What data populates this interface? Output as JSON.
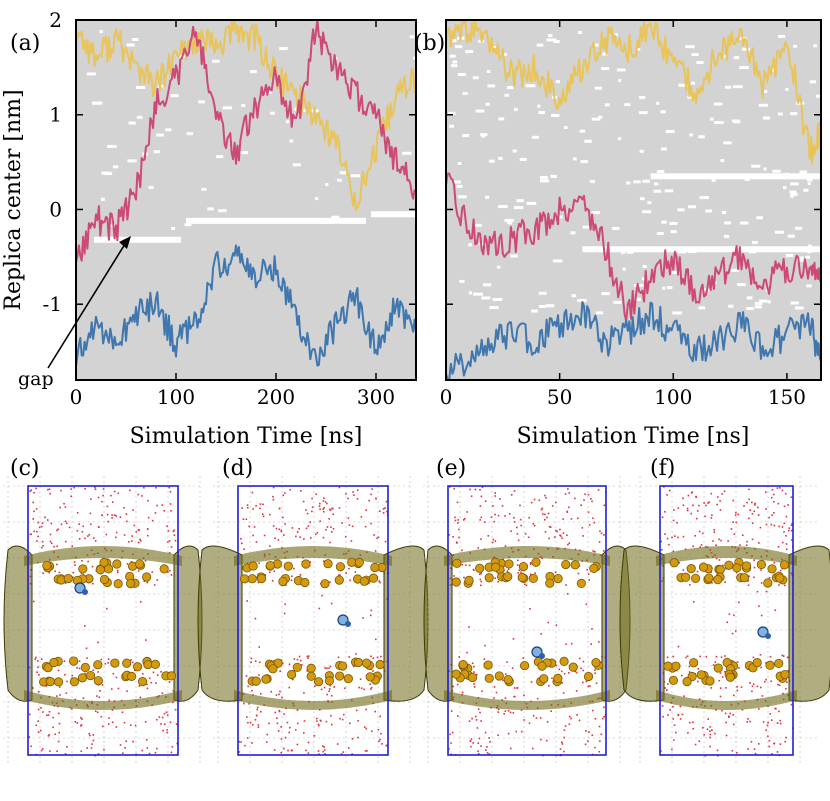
{
  "figure": {
    "panel_letters": [
      "(a)",
      "(b)",
      "(c)",
      "(d)",
      "(e)",
      "(f)"
    ],
    "annotation": "gap",
    "colors": {
      "background": "#d3d3d3",
      "gold": "#e8c45a",
      "pink": "#cc4a74",
      "blue": "#3f77ae",
      "gap": "#ffffff",
      "box": "#1f1fd6",
      "water": "#e0303a",
      "phosphate": "#d39a10",
      "membrane_surface": "#6f6a18"
    }
  },
  "chart_data": [
    {
      "type": "line",
      "panel": "(a)",
      "xlabel": "Simulation Time [ns]",
      "ylabel": "Replica center [nm]",
      "xlim": [
        0,
        340
      ],
      "ylim": [
        -1.8,
        2.0
      ],
      "xticks": [
        0,
        100,
        200,
        300
      ],
      "yticks": [
        -1,
        0,
        1,
        2
      ],
      "xtick_labels": [
        "0",
        "100",
        "200",
        "300"
      ],
      "ytick_labels": [
        "-1",
        "0",
        "1",
        "2"
      ],
      "grid": false,
      "series": [
        {
          "color": "#e8c45a",
          "x": [
            0,
            20,
            40,
            60,
            80,
            100,
            120,
            140,
            160,
            180,
            200,
            220,
            240,
            260,
            280,
            300,
            320,
            340
          ],
          "y": [
            1.9,
            1.6,
            1.8,
            1.5,
            1.3,
            1.6,
            1.8,
            1.7,
            1.9,
            1.8,
            1.4,
            1.2,
            1.0,
            0.7,
            0.1,
            0.6,
            1.2,
            1.4
          ]
        },
        {
          "color": "#cc4a74",
          "x": [
            0,
            20,
            40,
            60,
            80,
            100,
            120,
            140,
            160,
            180,
            200,
            220,
            240,
            260,
            280,
            300,
            320,
            340
          ],
          "y": [
            -0.5,
            -0.1,
            -0.2,
            0.2,
            1.1,
            1.4,
            1.9,
            1.0,
            0.6,
            1.1,
            1.4,
            0.9,
            1.9,
            1.5,
            1.2,
            1.0,
            0.5,
            0.2
          ]
        },
        {
          "color": "#3f77ae",
          "x": [
            0,
            20,
            40,
            60,
            80,
            100,
            120,
            140,
            160,
            180,
            200,
            220,
            240,
            260,
            280,
            300,
            320,
            340
          ],
          "y": [
            -1.6,
            -1.2,
            -1.4,
            -1.1,
            -1.0,
            -1.4,
            -1.2,
            -0.6,
            -0.5,
            -0.7,
            -0.6,
            -1.1,
            -1.6,
            -1.2,
            -0.9,
            -1.5,
            -1.0,
            -1.3
          ]
        }
      ],
      "gaps": [
        {
          "x": [
            18,
            105
          ],
          "y": -0.32
        },
        {
          "x": [
            110,
            290
          ],
          "y": -0.12
        },
        {
          "x": [
            295,
            340
          ],
          "y": -0.05
        }
      ]
    },
    {
      "type": "line",
      "panel": "(b)",
      "xlabel": "Simulation Time [ns]",
      "xlim": [
        0,
        165
      ],
      "ylim": [
        -1.8,
        2.0
      ],
      "xticks": [
        0,
        50,
        100,
        150
      ],
      "xtick_labels": [
        "0",
        "50",
        "100",
        "150"
      ],
      "grid": false,
      "series": [
        {
          "color": "#e8c45a",
          "x": [
            0,
            10,
            20,
            30,
            40,
            50,
            60,
            70,
            80,
            90,
            100,
            110,
            120,
            130,
            140,
            150,
            160,
            165
          ],
          "y": [
            1.8,
            1.9,
            1.7,
            1.4,
            1.5,
            1.1,
            1.5,
            1.8,
            1.7,
            1.9,
            1.6,
            1.2,
            1.7,
            1.8,
            1.3,
            1.8,
            0.6,
            0.8
          ]
        },
        {
          "color": "#cc4a74",
          "x": [
            0,
            10,
            20,
            30,
            40,
            50,
            60,
            70,
            80,
            90,
            100,
            110,
            120,
            130,
            140,
            150,
            160,
            165
          ],
          "y": [
            0.3,
            -0.2,
            -0.4,
            -0.3,
            -0.2,
            0.0,
            0.1,
            -0.4,
            -1.1,
            -0.7,
            -0.5,
            -0.9,
            -0.7,
            -0.5,
            -0.8,
            -0.6,
            -0.7,
            -0.6
          ]
        },
        {
          "color": "#3f77ae",
          "x": [
            0,
            10,
            20,
            30,
            40,
            50,
            60,
            70,
            80,
            90,
            100,
            110,
            120,
            130,
            140,
            150,
            160,
            165
          ],
          "y": [
            -1.7,
            -1.6,
            -1.4,
            -1.3,
            -1.4,
            -1.2,
            -1.1,
            -1.4,
            -1.3,
            -1.1,
            -1.3,
            -1.5,
            -1.4,
            -1.2,
            -1.5,
            -1.3,
            -1.2,
            -1.6
          ]
        }
      ],
      "gaps": [
        {
          "x": [
            60,
            165
          ],
          "y": -0.42
        },
        {
          "x": [
            90,
            165
          ],
          "y": 0.35
        }
      ]
    }
  ]
}
